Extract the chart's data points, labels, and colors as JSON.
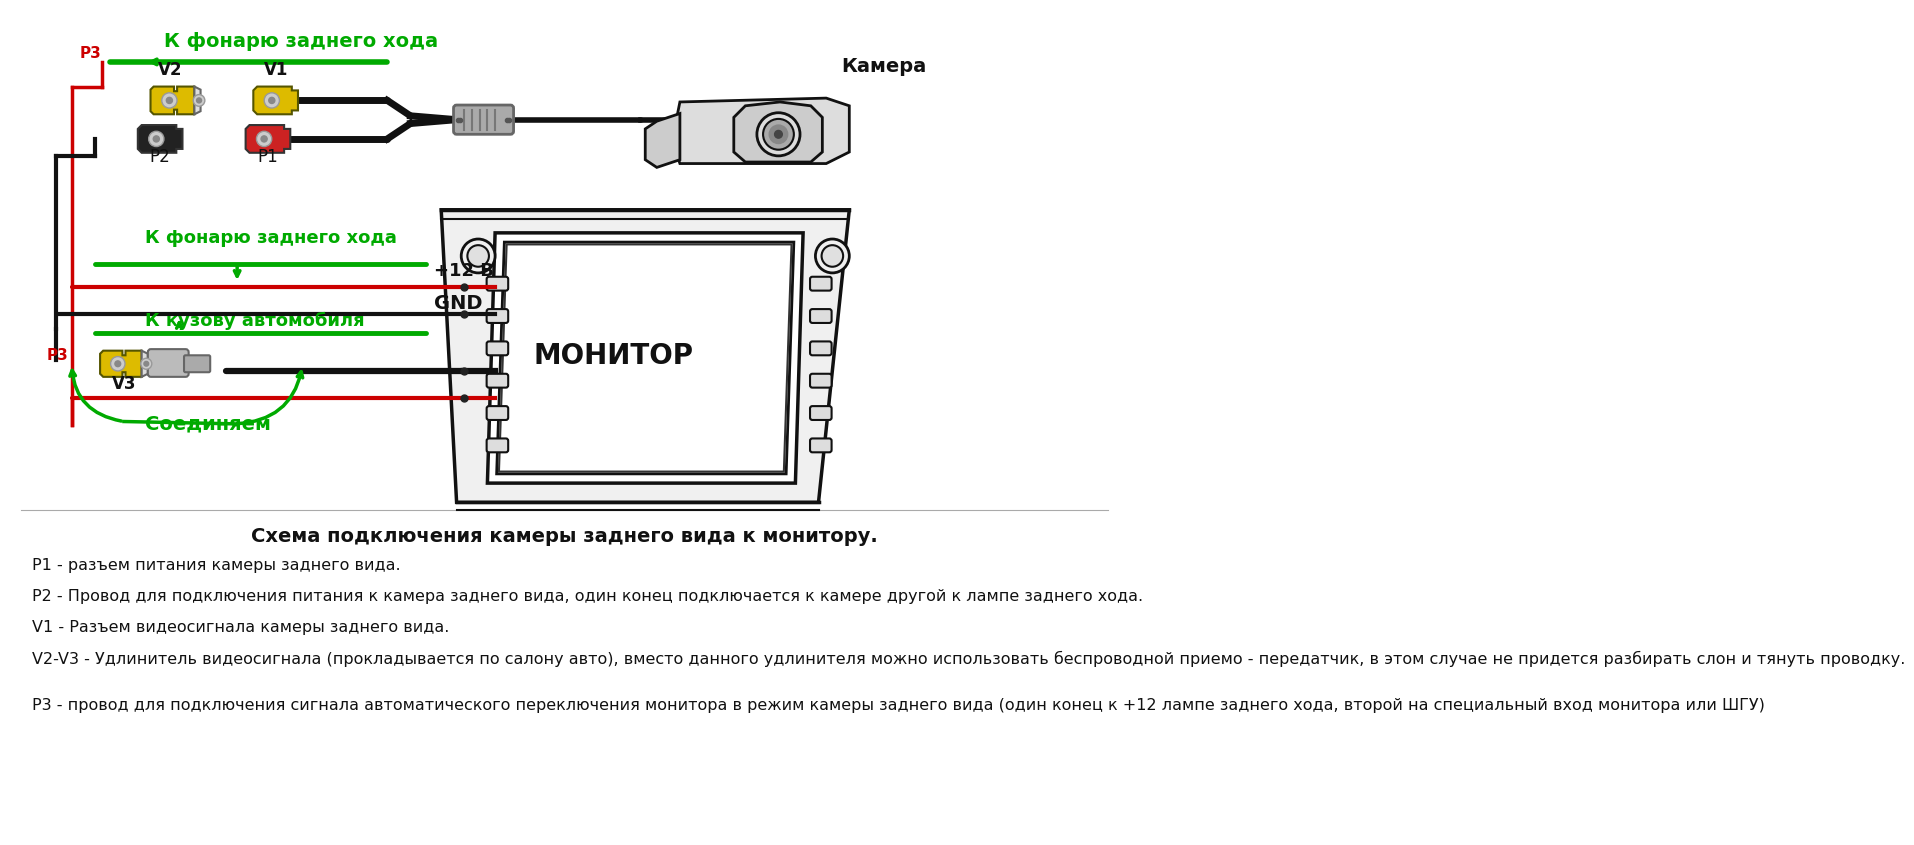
{
  "bg_color": "#ffffff",
  "title_section": "Схема подключения камеры заднего вида к монитору.",
  "descriptions": [
    "P1 - разъем питания камеры заднего вида.",
    "P2 - Провод для подключения питания к камера заднего вида, один конец подключается к камере другой к лампе заднего хода.",
    "V1 - Разъем видеосигнала камеры заднего вида.",
    "V2-V3 - Удлинитель видеосигнала (прокладывается по салону авто), вместо данного удлинителя можно использовать беспроводной приемо - передатчик, в этом случае не придется разбирать слон и тянуть проводку.",
    "P3 - провод для подключения сигнала автоматического переключения монитора в режим камеры заднего вида (один конец к +12 лампе заднего хода, второй на специальный вход монитора или ШГУ)"
  ],
  "green_color": "#00aa00",
  "red_color": "#cc0000",
  "black_color": "#111111",
  "gray_color": "#888888",
  "yellow_color": "#ddaa00",
  "line_color": "#111111"
}
